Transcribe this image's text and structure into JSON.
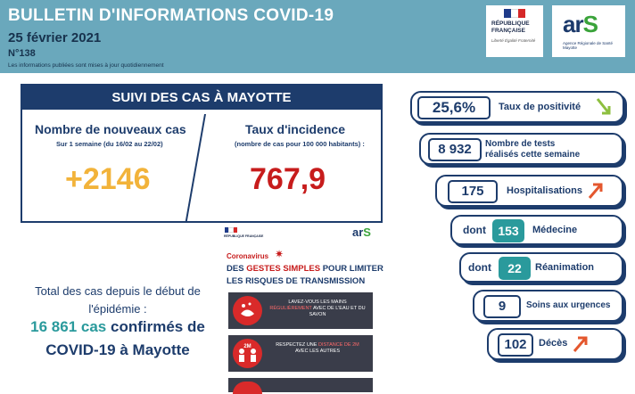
{
  "header": {
    "title": "BULLETIN D'INFORMATIONS COVID-19",
    "date": "25 février 2021",
    "number": "N°138",
    "note": "Les informations publiées sont mises à jour quotidiennement"
  },
  "logos": {
    "republique_line1": "RÉPUBLIQUE",
    "republique_line2": "FRANÇAISE",
    "motto": "Liberté Égalité Fraternité",
    "ars_word": "ar",
    "ars_s": "S",
    "ars_sub": "Agence Régionale de Santé Mayotte"
  },
  "suivi": {
    "title": "SUIVI DES CAS À MAYOTTE",
    "new_cases": {
      "label": "Nombre de nouveaux cas",
      "period": "Sur 1 semaine (du 16/02 au 22/02)",
      "value": "+2146"
    },
    "incidence": {
      "label": "Taux d'incidence",
      "sub": "(nombre de cas pour 100 000 habitants) :",
      "value": "767,9"
    }
  },
  "total": {
    "line1": "Total des cas depuis le début de l'épidémie :",
    "number": "16 861 cas",
    "after": " confirmés de",
    "line3": "COVID-19 à Mayotte"
  },
  "poster": {
    "rf": "RÉPUBLIQUE FRANÇAISE",
    "ars_word": "ar",
    "ars_s": "S",
    "coronavirus": "Coronavirus",
    "gestes_pre": "DES ",
    "gestes_red": "GESTES SIMPLES",
    "gestes_post": " POUR LIMITER",
    "gestes_line2": "LES RISQUES DE TRANSMISSION",
    "card1_a": "LAVEZ-VOUS LES MAINS",
    "card1_red": "RÉGULIÈREMENT",
    "card1_b": "AVEC DE L'EAU ET DU SAVON",
    "card2_a": "RESPECTEZ UNE",
    "card2_red": "DISTANCE DE 2M",
    "card2_b": "AVEC LES AUTRES",
    "card2_icon": "2M"
  },
  "indicators": {
    "positivite": {
      "value": "25,6%",
      "label": "Taux de positivité",
      "trend": "down",
      "trend_color": "#8dbf3f"
    },
    "tests": {
      "value": "8 932",
      "label1": "Nombre de tests",
      "label2": "réalisés cette semaine"
    },
    "hospitalisations": {
      "value": "175",
      "label": "Hospitalisations",
      "trend": "up",
      "trend_color": "#e4572e"
    },
    "medecine": {
      "prefix": "dont",
      "value": "153",
      "label": "Médecine"
    },
    "reanimation": {
      "prefix": "dont",
      "value": "22",
      "label": "Réanimation"
    },
    "urgences": {
      "value": "9",
      "label": "Soins aux urgences"
    },
    "deces": {
      "value": "102",
      "label": "Décès",
      "trend": "up",
      "trend_color": "#e4572e"
    }
  },
  "colors": {
    "header_bg": "#6aa8bc",
    "navy": "#1d3c6c",
    "orange": "#f2b33a",
    "red": "#c71c1c",
    "teal": "#2a9a9c"
  }
}
